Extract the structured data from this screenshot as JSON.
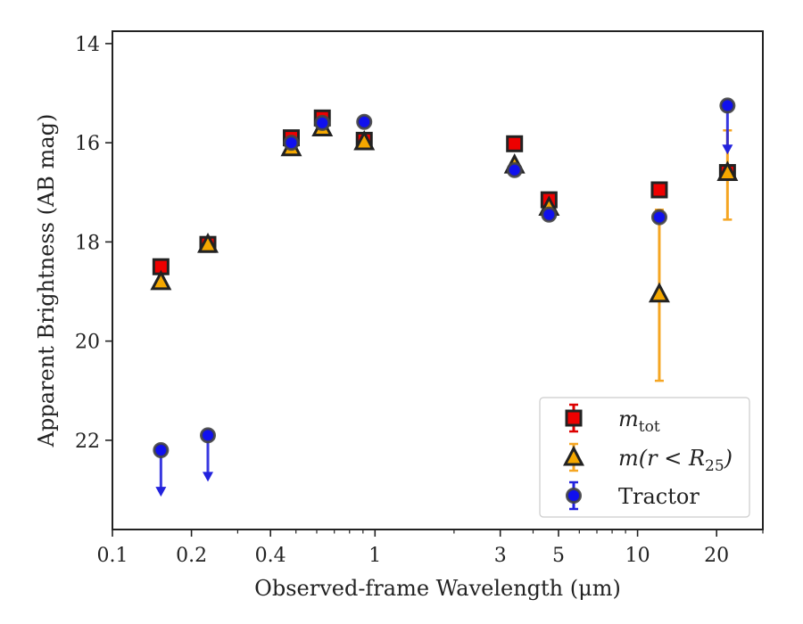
{
  "chart_data": {
    "type": "scatter",
    "xlabel": "Observed-frame Wavelength (μm)",
    "ylabel": "Apparent Brightness (AB mag)",
    "x_scale": "log",
    "xlim": [
      0.1,
      30
    ],
    "ylim": [
      23.8,
      13.75
    ],
    "y_inverted": true,
    "x_ticks": [
      {
        "value": 0.1,
        "label": "0.1"
      },
      {
        "value": 0.2,
        "label": "0.2"
      },
      {
        "value": 0.4,
        "label": "0.4"
      },
      {
        "value": 1,
        "label": "1"
      },
      {
        "value": 3,
        "label": "3"
      },
      {
        "value": 5,
        "label": "5"
      },
      {
        "value": 10,
        "label": "10"
      },
      {
        "value": 20,
        "label": "20"
      }
    ],
    "x_minor_ticks": [
      0.3,
      0.5,
      0.6,
      0.7,
      0.8,
      0.9,
      2,
      4,
      6,
      7,
      8,
      9,
      30
    ],
    "y_ticks": [
      {
        "value": 14,
        "label": "14"
      },
      {
        "value": 16,
        "label": "16"
      },
      {
        "value": 18,
        "label": "18"
      },
      {
        "value": 20,
        "label": "20"
      },
      {
        "value": 22,
        "label": "22"
      }
    ],
    "legend_position": "lower-right",
    "series": [
      {
        "name": "m_tot",
        "legend_main": "m",
        "legend_sub": "tot",
        "marker": "square",
        "fill": "#ee0000",
        "edge": "#222222",
        "errcolor": "#dd0000",
        "points": [
          {
            "x": 0.153,
            "y": 18.5,
            "err": 0.05
          },
          {
            "x": 0.231,
            "y": 18.05,
            "err": 0.05
          },
          {
            "x": 0.48,
            "y": 15.9,
            "err": 0.05
          },
          {
            "x": 0.63,
            "y": 15.5,
            "err": 0.05
          },
          {
            "x": 0.91,
            "y": 15.95,
            "err": 0.05
          },
          {
            "x": 3.4,
            "y": 16.02,
            "err": 0.05
          },
          {
            "x": 4.6,
            "y": 17.15,
            "err": 0.05
          },
          {
            "x": 12.1,
            "y": 16.95,
            "err": 0.05
          },
          {
            "x": 22.0,
            "y": 16.6,
            "err": 0.05
          }
        ]
      },
      {
        "name": "m(r < R_25)",
        "legend_main": "m(r < R",
        "legend_sub": "25",
        "legend_tail": ")",
        "marker": "triangle",
        "fill": "#f5a800",
        "edge": "#222222",
        "errcolor": "#f5a623",
        "points": [
          {
            "x": 0.153,
            "y": 18.8,
            "err": 0.05
          },
          {
            "x": 0.231,
            "y": 18.05,
            "err": 0.05
          },
          {
            "x": 0.48,
            "y": 16.1,
            "err": 0.05
          },
          {
            "x": 0.63,
            "y": 15.7,
            "err": 0.05
          },
          {
            "x": 0.91,
            "y": 15.98,
            "err": 0.05
          },
          {
            "x": 3.4,
            "y": 16.45,
            "err": 0.05
          },
          {
            "x": 4.6,
            "y": 17.3,
            "err": 0.05
          },
          {
            "x": 12.1,
            "y": 19.05,
            "err_low": 1.75,
            "err_high": 1.7
          },
          {
            "x": 22.0,
            "y": 16.6,
            "err_low": 0.95,
            "err_high": 0.85
          }
        ]
      },
      {
        "name": "Tractor",
        "legend_main": "Tractor",
        "marker": "circle",
        "fill": "#1010ee",
        "edge": "#444444",
        "errcolor": "#2222dd",
        "points": [
          {
            "x": 0.153,
            "y": 22.2,
            "upper_limit": true,
            "arrow_to": 23.1
          },
          {
            "x": 0.231,
            "y": 21.9,
            "upper_limit": true,
            "arrow_to": 22.8
          },
          {
            "x": 0.48,
            "y": 16.0,
            "err": 0.05
          },
          {
            "x": 0.63,
            "y": 15.6,
            "err": 0.05
          },
          {
            "x": 0.91,
            "y": 15.58,
            "err": 0.05
          },
          {
            "x": 3.4,
            "y": 16.55,
            "err": 0.05
          },
          {
            "x": 4.6,
            "y": 17.45,
            "err": 0.05
          },
          {
            "x": 12.1,
            "y": 17.5,
            "err": 0.05
          },
          {
            "x": 22.0,
            "y": 15.25,
            "upper_limit": true,
            "arrow_to": 16.2
          }
        ]
      }
    ]
  }
}
